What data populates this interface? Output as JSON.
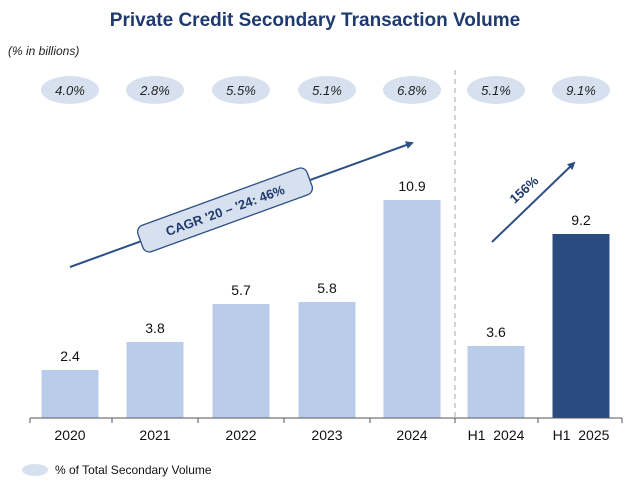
{
  "chart_data": {
    "type": "bar",
    "title": "Private Credit Secondary Transaction Volume",
    "unit_note": "(% in billions)",
    "categories": [
      "2020",
      "2021",
      "2022",
      "2023",
      "2024",
      "H1  2024",
      "H1  2025"
    ],
    "values": [
      2.4,
      3.8,
      5.7,
      5.8,
      10.9,
      3.6,
      9.2
    ],
    "value_labels": [
      "2.4",
      "3.8",
      "5.7",
      "5.8",
      "10.9",
      "3.6",
      "9.2"
    ],
    "pct_labels": [
      "4.0%",
      "2.8%",
      "5.5%",
      "5.1%",
      "6.8%",
      "5.1%",
      "9.1%"
    ],
    "highlight_index": 6,
    "ylim": [
      0,
      14.5
    ],
    "annotations": {
      "cagr": "CAGR '20 – '24: 46%",
      "growth": "156%"
    },
    "legend": "% of Total Secondary Volume",
    "colors": {
      "bar": "#b9cce9",
      "bar_highlight": "#294b80",
      "pill": "#d7e0ee",
      "title": "#1f3a6e",
      "arrow": "#2c4f86",
      "axis": "#555555",
      "divider": "#a8a8a8"
    }
  }
}
